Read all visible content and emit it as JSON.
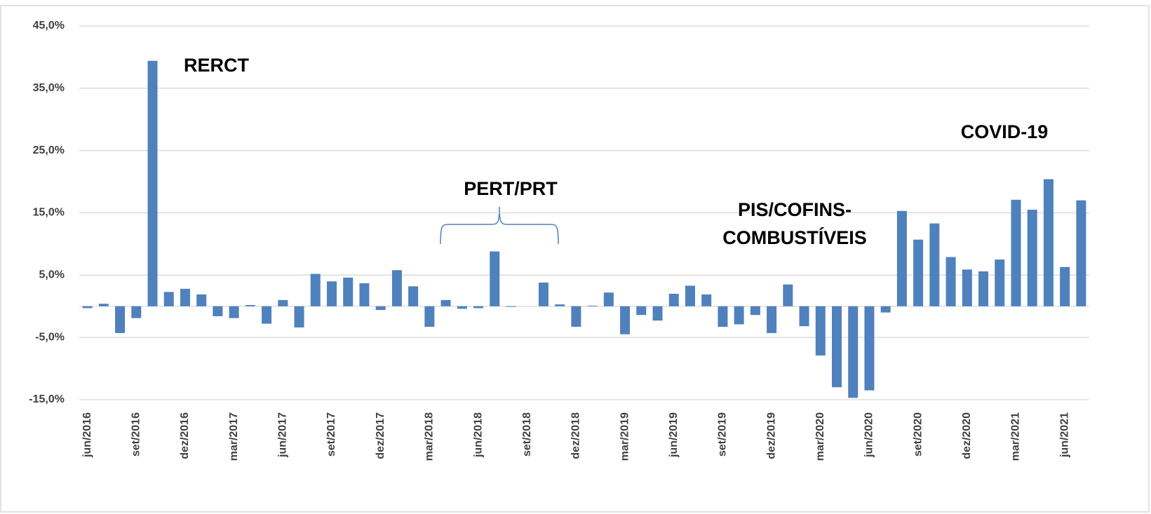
{
  "chart_data": {
    "type": "bar",
    "categories": [
      "jun/2016",
      null,
      null,
      "set/2016",
      null,
      null,
      "dez/2016",
      null,
      null,
      "mar/2017",
      null,
      null,
      "jun/2017",
      null,
      null,
      "set/2017",
      null,
      null,
      "dez/2017",
      null,
      null,
      "mar/2018",
      null,
      null,
      "jun/2018",
      null,
      null,
      "set/2018",
      null,
      null,
      "dez/2018",
      null,
      null,
      "mar/2019",
      null,
      null,
      "jun/2019",
      null,
      null,
      "set/2019",
      null,
      null,
      "dez/2019",
      null,
      null,
      "mar/2020",
      null,
      null,
      "jun/2020",
      null,
      null,
      "set/2020",
      null,
      null,
      "dez/2020",
      null,
      null,
      "mar/2021",
      null,
      null,
      "jun/2021",
      null
    ],
    "values": [
      -0.3,
      0.4,
      -4.3,
      -1.9,
      39.4,
      2.3,
      2.8,
      1.9,
      -1.6,
      -1.9,
      0.2,
      -2.8,
      1.0,
      -3.4,
      5.2,
      4.0,
      4.6,
      3.7,
      -0.6,
      5.8,
      3.2,
      -3.3,
      1.0,
      -0.4,
      -0.3,
      8.8,
      -0.1,
      0,
      3.8,
      0.3,
      -3.3,
      0.1,
      2.2,
      -4.5,
      -1.4,
      -2.3,
      2.0,
      3.3,
      1.9,
      -3.3,
      -2.9,
      -1.4,
      -4.3,
      3.5,
      -3.2,
      -7.9,
      -13.0,
      -14.7,
      -13.5,
      -1.0,
      15.3,
      10.7,
      13.3,
      7.9,
      5.9,
      5.6,
      7.5,
      17.1,
      15.5,
      20.4,
      6.3,
      17.0
    ],
    "color": "#4f81bd",
    "ylim": [
      -15,
      45
    ],
    "yticks": [
      {
        "value": -15,
        "label": "-15,0%"
      },
      {
        "value": -5,
        "label": "-5,0%"
      },
      {
        "value": 5,
        "label": "5,0%"
      },
      {
        "value": 15,
        "label": "15,0%"
      },
      {
        "value": 25,
        "label": "25,0%"
      },
      {
        "value": 35,
        "label": "35,0%"
      },
      {
        "value": 45,
        "label": "45,0%"
      }
    ],
    "grid": true,
    "annotations": [
      "RERCT",
      "PERT/PRT",
      "PIS/COFINS-",
      "COMBUSTÍVEIS",
      "COVID-19"
    ]
  }
}
